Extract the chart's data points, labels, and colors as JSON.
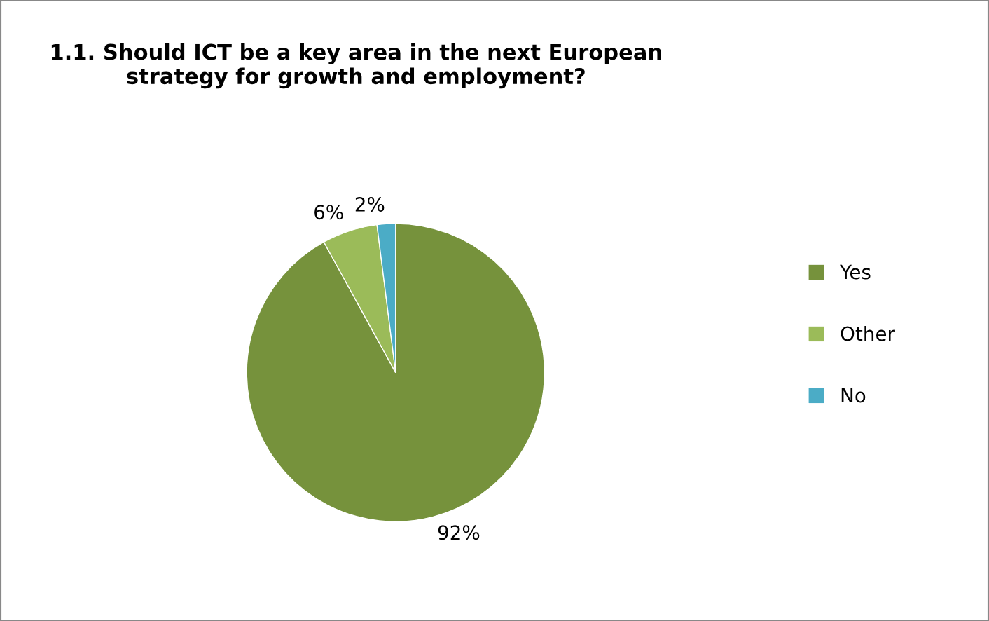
{
  "chart_data": {
    "type": "pie",
    "title": "1.1. Should ICT be a key area in the next European\nstrategy for growth and employment?",
    "categories": [
      "Yes",
      "Other",
      "No"
    ],
    "values": [
      92,
      6,
      2
    ],
    "colors": [
      "#76923c",
      "#9bbb59",
      "#4bacc6"
    ],
    "value_labels": [
      "92%",
      "6%",
      "2%"
    ],
    "legend": "right"
  }
}
